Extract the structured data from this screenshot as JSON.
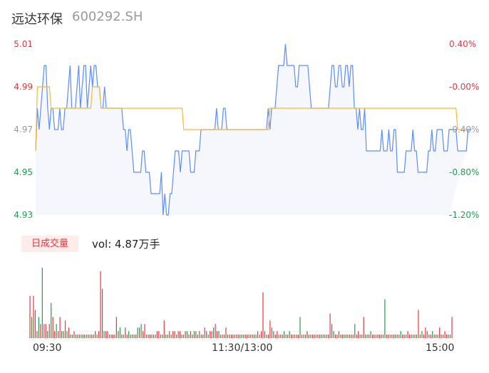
{
  "header": {
    "name": "远达环保",
    "code": "600292.SH"
  },
  "volume_panel": {
    "badge": "日成交量",
    "vol_text": "vol: 4.87万手"
  },
  "colors": {
    "price_line": "#5b8ff9",
    "avg_line": "#f5b83b",
    "area_fill": "#f5f7fc",
    "up": "#e8383d",
    "down": "#1aa34a",
    "flat": "#999999"
  },
  "chart_data": [
    {
      "type": "line",
      "y_ticks_left": [
        "5.01",
        "4.99",
        "4.97",
        "4.95",
        "4.93"
      ],
      "y_ticks_right": [
        "0.40%",
        "-0.00%",
        "-0.40%",
        "-0.80%",
        "-1.20%"
      ],
      "y_tick_values": [
        5.01,
        4.99,
        4.97,
        4.95,
        4.93
      ],
      "ylim": [
        4.93,
        5.01
      ],
      "pct_range": [
        -1.2,
        0.4
      ],
      "prev_close": 4.99,
      "minutes": 241,
      "series": [
        {
          "values": [
            4.96,
            4.98,
            4.97,
            4.98,
            4.99,
            5.0,
            5.0,
            4.98,
            4.97,
            4.98,
            4.98,
            4.97,
            4.97,
            4.97,
            4.98,
            4.97,
            4.97,
            4.98,
            4.98,
            4.99,
            5.0,
            4.98,
            4.98,
            4.98,
            4.99,
            5.0,
            4.98,
            4.99,
            5.0,
            5.0,
            4.98,
            4.99,
            5.0,
            4.99,
            5.0,
            5.0,
            4.99,
            4.99,
            4.98,
            4.98,
            4.99,
            4.98,
            4.98,
            4.98,
            4.98,
            4.98,
            4.98,
            4.98,
            4.98,
            4.98,
            4.98,
            4.97,
            4.97,
            4.96,
            4.97,
            4.97,
            4.96,
            4.95,
            4.95,
            4.95,
            4.95,
            4.95,
            4.96,
            4.96,
            4.95,
            4.95,
            4.95,
            4.94,
            4.94,
            4.94,
            4.94,
            4.94,
            4.94,
            4.95,
            4.93,
            4.94,
            4.93,
            4.93,
            4.94,
            4.94,
            4.95,
            4.96,
            4.96,
            4.96,
            4.95,
            4.96,
            4.96,
            4.96,
            4.96,
            4.96,
            4.95,
            4.95,
            4.95,
            4.96,
            4.96,
            4.96,
            4.97,
            4.97,
            4.97,
            4.97,
            4.97,
            4.97,
            4.97,
            4.97,
            4.97,
            4.98,
            4.97,
            4.97,
            4.97,
            4.98,
            4.98,
            4.97,
            4.97,
            4.97,
            4.97,
            4.97,
            4.97,
            4.97,
            4.97,
            4.97,
            4.97,
            4.97,
            4.97,
            4.97,
            4.97,
            4.97,
            4.97,
            4.97,
            4.97,
            4.97,
            4.97,
            4.97,
            4.97,
            4.97,
            4.97,
            4.98,
            4.97,
            4.98,
            4.98,
            4.98,
            4.99,
            5.0,
            5.0,
            5.0,
            5.0,
            5.01,
            5.0,
            5.0,
            5.0,
            5.0,
            5.0,
            4.99,
            4.99,
            5.0,
            5.0,
            5.0,
            5.0,
            5.0,
            5.0,
            4.99,
            4.98,
            4.98,
            4.98,
            4.98,
            4.98,
            4.98,
            4.98,
            4.98,
            4.98,
            4.98,
            4.98,
            4.99,
            5.0,
            5.0,
            4.99,
            4.99,
            5.0,
            5.0,
            4.99,
            4.99,
            5.0,
            5.0,
            4.99,
            5.0,
            5.0,
            4.98,
            4.98,
            4.97,
            4.98,
            4.97,
            4.97,
            4.98,
            4.96,
            4.96,
            4.96,
            4.96,
            4.96,
            4.96,
            4.96,
            4.96,
            4.96,
            4.97,
            4.96,
            4.96,
            4.96,
            4.97,
            4.96,
            4.96,
            4.97,
            4.97,
            4.95,
            4.95,
            4.95,
            4.95,
            4.95,
            4.96,
            4.96,
            4.96,
            4.96,
            4.97,
            4.96,
            4.96,
            4.95,
            4.95,
            4.95,
            4.95,
            4.95,
            4.95,
            4.96,
            4.96,
            4.97,
            4.96,
            4.96,
            4.97,
            4.97,
            4.97,
            4.97,
            4.96,
            4.96,
            4.96,
            4.97,
            4.97,
            4.97,
            4.97,
            4.97,
            4.96,
            4.96,
            4.96,
            4.96,
            4.96,
            4.96,
            4.97,
            4.97,
            4.97
          ]
        },
        {
          "values": [
            4.96,
            4.99,
            4.99,
            4.99,
            4.99,
            4.99,
            4.99,
            4.99,
            4.99,
            4.98,
            4.98,
            4.98,
            4.98,
            4.98,
            4.98,
            4.98,
            4.98,
            4.98,
            4.98,
            4.98,
            4.98,
            4.98,
            4.98,
            4.98,
            4.98,
            4.98,
            4.98,
            4.98,
            4.98,
            4.98,
            4.98,
            4.98,
            4.98,
            4.99,
            4.99,
            4.99,
            4.99,
            4.99,
            4.98,
            4.98,
            4.98,
            4.98,
            4.98,
            4.98,
            4.98,
            4.98,
            4.98,
            4.98,
            4.98,
            4.98,
            4.98,
            4.98,
            4.98,
            4.98,
            4.98,
            4.98,
            4.98,
            4.98,
            4.98,
            4.98,
            4.98,
            4.98,
            4.98,
            4.98,
            4.98,
            4.98,
            4.98,
            4.98,
            4.98,
            4.98,
            4.98,
            4.98,
            4.98,
            4.98,
            4.98,
            4.98,
            4.98,
            4.98,
            4.98,
            4.98,
            4.98,
            4.98,
            4.98,
            4.98,
            4.98,
            4.98,
            4.97,
            4.97,
            4.97,
            4.97,
            4.97,
            4.97,
            4.97,
            4.97,
            4.97,
            4.97,
            4.97,
            4.97,
            4.97,
            4.97,
            4.97,
            4.97,
            4.97,
            4.97,
            4.97,
            4.97,
            4.97,
            4.97,
            4.97,
            4.97,
            4.97,
            4.97,
            4.97,
            4.97,
            4.97,
            4.97,
            4.97,
            4.97,
            4.97,
            4.97,
            4.97,
            4.97,
            4.97,
            4.97,
            4.97,
            4.97,
            4.97,
            4.97,
            4.97,
            4.97,
            4.97,
            4.97,
            4.97,
            4.97,
            4.97,
            4.97,
            4.98,
            4.98,
            4.98,
            4.98,
            4.98,
            4.98,
            4.98,
            4.98,
            4.98,
            4.98,
            4.98,
            4.98,
            4.98,
            4.98,
            4.98,
            4.98,
            4.98,
            4.98,
            4.98,
            4.98,
            4.98,
            4.98,
            4.98,
            4.98,
            4.98,
            4.98,
            4.98,
            4.98,
            4.98,
            4.98,
            4.98,
            4.98,
            4.98,
            4.98,
            4.98,
            4.98,
            4.98,
            4.98,
            4.98,
            4.98,
            4.98,
            4.98,
            4.98,
            4.98,
            4.98,
            4.98,
            4.98,
            4.98,
            4.98,
            4.98,
            4.98,
            4.98,
            4.98,
            4.98,
            4.98,
            4.98,
            4.98,
            4.98,
            4.98,
            4.98,
            4.98,
            4.98,
            4.98,
            4.98,
            4.98,
            4.98,
            4.98,
            4.98,
            4.98,
            4.98,
            4.98,
            4.98,
            4.98,
            4.98,
            4.98,
            4.98,
            4.98,
            4.98,
            4.98,
            4.98,
            4.98,
            4.98,
            4.98,
            4.98,
            4.98,
            4.98,
            4.98,
            4.98,
            4.98,
            4.98,
            4.98,
            4.98,
            4.98,
            4.98,
            4.98,
            4.98,
            4.98,
            4.98,
            4.98,
            4.98,
            4.98,
            4.98,
            4.98,
            4.98,
            4.98,
            4.98,
            4.98,
            4.98,
            4.98,
            4.97,
            4.97,
            4.97,
            4.97,
            4.97,
            4.97,
            4.97
          ]
        }
      ]
    },
    {
      "type": "bar",
      "x_ticks": [
        "09:30",
        "11:30/13:00",
        "15:00"
      ],
      "x_tick_minutes": [
        0,
        120,
        240
      ],
      "volumes": [
        60,
        30,
        60,
        40,
        10,
        30,
        20,
        100,
        20,
        20,
        10,
        20,
        50,
        30,
        10,
        20,
        10,
        30,
        10,
        10,
        25,
        10,
        15,
        5,
        5,
        10,
        5,
        5,
        5,
        5,
        5,
        5,
        5,
        5,
        5,
        5,
        5,
        10,
        5,
        10,
        95,
        70,
        10,
        10,
        10,
        5,
        5,
        5,
        5,
        30,
        10,
        15,
        5,
        5,
        15,
        5,
        10,
        5,
        5,
        5,
        5,
        15,
        15,
        20,
        10,
        20,
        5,
        5,
        5,
        5,
        5,
        5,
        10,
        10,
        5,
        5,
        25,
        5,
        5,
        10,
        5,
        10,
        10,
        5,
        10,
        10,
        5,
        5,
        10,
        10,
        5,
        10,
        5,
        10,
        10,
        5,
        10,
        5,
        5,
        15,
        10,
        5,
        10,
        10,
        15,
        20,
        10,
        10,
        5,
        5,
        5,
        15,
        5,
        5,
        5,
        5,
        5,
        5,
        5,
        5,
        5,
        5,
        5,
        5,
        5,
        5,
        5,
        5,
        5,
        10,
        5,
        10,
        65,
        10,
        5,
        5,
        25,
        15,
        10,
        5,
        10,
        5,
        5,
        5,
        10,
        5,
        5,
        10,
        5,
        5,
        5,
        5,
        5,
        30,
        5,
        5,
        5,
        10,
        5,
        5,
        5,
        5,
        5,
        5,
        5,
        5,
        5,
        5,
        5,
        5,
        35,
        20,
        10,
        5,
        5,
        10,
        5,
        5,
        5,
        5,
        5,
        5,
        5,
        5,
        20,
        5,
        10,
        5,
        5,
        30,
        5,
        5,
        5,
        10,
        5,
        5,
        5,
        5,
        5,
        5,
        5,
        55,
        5,
        5,
        5,
        5,
        5,
        5,
        5,
        5,
        10,
        5,
        5,
        5,
        10,
        5,
        5,
        5,
        5,
        5,
        40,
        5,
        10,
        5,
        15,
        10,
        5,
        5,
        10,
        5,
        5,
        5,
        15,
        5,
        5,
        10,
        5,
        5,
        5,
        30
      ],
      "vol_colors": [
        "up",
        "down",
        "up",
        "up",
        "up",
        "down",
        "up",
        "down",
        "up",
        "up",
        "down",
        "up",
        "down",
        "up",
        "up",
        "down",
        "up",
        "up",
        "down",
        "up",
        "up",
        "down",
        "up",
        "down",
        "up",
        "up",
        "down",
        "up",
        "up",
        "down",
        "up",
        "down",
        "up",
        "up",
        "down",
        "up",
        "down",
        "up",
        "down",
        "up",
        "up",
        "up",
        "down",
        "up",
        "up",
        "down",
        "up",
        "up",
        "down",
        "up",
        "up",
        "down",
        "up",
        "down",
        "up",
        "up",
        "down",
        "up",
        "up",
        "down",
        "up",
        "down",
        "up",
        "down",
        "up",
        "up",
        "down",
        "up",
        "up",
        "down",
        "up",
        "down",
        "up",
        "up",
        "down",
        "up",
        "up",
        "down",
        "up",
        "up",
        "down",
        "up",
        "up",
        "down",
        "up",
        "up",
        "down",
        "up",
        "up",
        "down",
        "up",
        "down",
        "up",
        "down",
        "up",
        "up",
        "down",
        "up",
        "down",
        "up",
        "up",
        "down",
        "up",
        "up",
        "down",
        "up",
        "up",
        "down",
        "up",
        "up",
        "down",
        "up",
        "up",
        "down",
        "up",
        "up",
        "down",
        "up",
        "up",
        "down",
        "up",
        "down",
        "up",
        "up",
        "down",
        "up",
        "up",
        "down",
        "up",
        "up",
        "down",
        "up",
        "up",
        "up",
        "down",
        "up",
        "up",
        "up",
        "down",
        "up",
        "up",
        "down",
        "up",
        "up",
        "down",
        "up",
        "up",
        "down",
        "up",
        "up",
        "down",
        "up",
        "up",
        "down",
        "up",
        "up",
        "down",
        "up",
        "up",
        "down",
        "up",
        "up",
        "down",
        "up",
        "up",
        "down",
        "up",
        "up",
        "down",
        "up",
        "up",
        "up",
        "down",
        "up",
        "up",
        "down",
        "up",
        "up",
        "down",
        "up",
        "up",
        "down",
        "up",
        "up",
        "down",
        "up",
        "up",
        "down",
        "up",
        "up",
        "down",
        "up",
        "up",
        "down",
        "up",
        "up",
        "down",
        "up",
        "up",
        "down",
        "up",
        "down",
        "up",
        "up",
        "down",
        "up",
        "up",
        "down",
        "up",
        "up",
        "down",
        "up",
        "up",
        "down",
        "up",
        "up",
        "down",
        "up",
        "up",
        "down",
        "up",
        "up",
        "down",
        "up",
        "up",
        "down",
        "up",
        "up",
        "down",
        "up",
        "up",
        "down",
        "up",
        "up",
        "down",
        "up",
        "up",
        "down",
        "up",
        "up"
      ]
    }
  ]
}
